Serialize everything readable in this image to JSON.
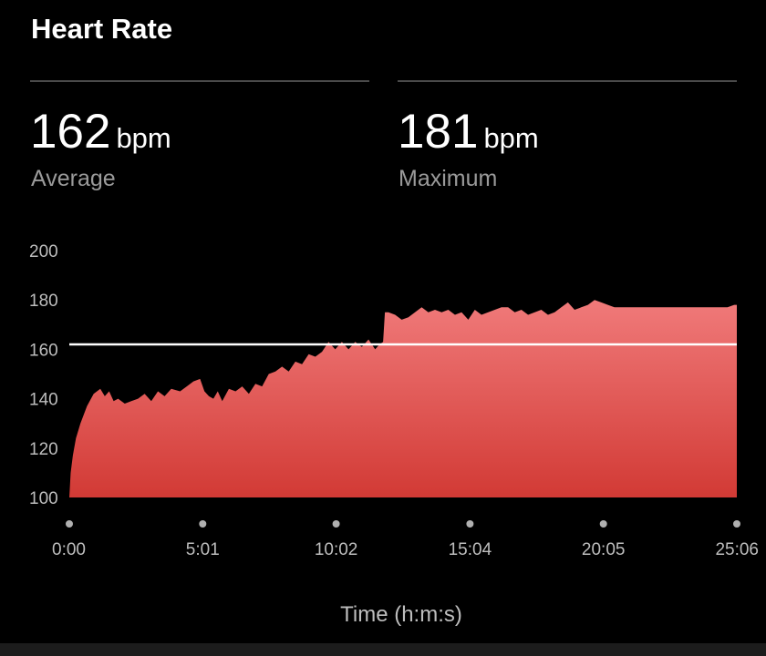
{
  "card": {
    "title": "Heart Rate"
  },
  "stats": {
    "average": {
      "value": "162",
      "unit": "bpm",
      "label": "Average"
    },
    "maximum": {
      "value": "181",
      "unit": "bpm",
      "label": "Maximum"
    }
  },
  "colors": {
    "fill_top": "#f07a7a",
    "fill_bottom": "#d23a35",
    "average_line": "#ffffff",
    "tick_text": "#bdbdbd",
    "tick_dot": "#b0b0b0"
  },
  "chart_data": {
    "type": "area",
    "xlabel": "Time (h:m:s)",
    "ylabel": "",
    "xlim": [
      0,
      1506
    ],
    "ylim": [
      100,
      200
    ],
    "y_ticks": [
      "100",
      "120",
      "140",
      "160",
      "180",
      "200"
    ],
    "x_ticks": [
      {
        "t": 0,
        "label": "0:00"
      },
      {
        "t": 301,
        "label": "5:01"
      },
      {
        "t": 602,
        "label": "10:02"
      },
      {
        "t": 904,
        "label": "15:04"
      },
      {
        "t": 1205,
        "label": "20:05"
      },
      {
        "t": 1506,
        "label": "25:06"
      }
    ],
    "average_line": 162,
    "series": [
      {
        "x": [
          0,
          3,
          8,
          15,
          25,
          40,
          55,
          70,
          80,
          90,
          100,
          110,
          125,
          140,
          155,
          170,
          185,
          200,
          215,
          230,
          250,
          265,
          280,
          295,
          305,
          315,
          325,
          335,
          345,
          360,
          375,
          390,
          405,
          420,
          435,
          450,
          465,
          480,
          495,
          510,
          525,
          540,
          555,
          570,
          585,
          600,
          615,
          630,
          645,
          660,
          675,
          690,
          700,
          708,
          712,
          720,
          735,
          750,
          765,
          780,
          795,
          810,
          825,
          840,
          855,
          870,
          885,
          900,
          915,
          930,
          945,
          960,
          975,
          990,
          1005,
          1020,
          1035,
          1050,
          1065,
          1080,
          1095,
          1110,
          1125,
          1140,
          1155,
          1170,
          1185,
          1200,
          1215,
          1230,
          1245,
          1260,
          1275,
          1290,
          1305,
          1320,
          1335,
          1350,
          1365,
          1380,
          1395,
          1410,
          1425,
          1440,
          1455,
          1470,
          1485,
          1500,
          1506
        ],
        "y": [
          100,
          110,
          117,
          124,
          130,
          137,
          142,
          144,
          141,
          143,
          139,
          140,
          138,
          139,
          140,
          142,
          139,
          143,
          141,
          144,
          143,
          145,
          147,
          148,
          143,
          141,
          140,
          143,
          139,
          144,
          143,
          145,
          142,
          146,
          145,
          150,
          151,
          153,
          151,
          155,
          154,
          158,
          157,
          159,
          163,
          160,
          163,
          160,
          163,
          161,
          164,
          160,
          162,
          163,
          175,
          175,
          174,
          172,
          173,
          175,
          177,
          175,
          176,
          175,
          176,
          174,
          175,
          172,
          176,
          174,
          175,
          176,
          177,
          177,
          175,
          176,
          174,
          175,
          176,
          174,
          175,
          177,
          179,
          176,
          177,
          178,
          180,
          179,
          178,
          177,
          177,
          177,
          177,
          177,
          177,
          177,
          177,
          177,
          177,
          177,
          177,
          177,
          177,
          177,
          177,
          177,
          177,
          178,
          178
        ]
      }
    ]
  }
}
